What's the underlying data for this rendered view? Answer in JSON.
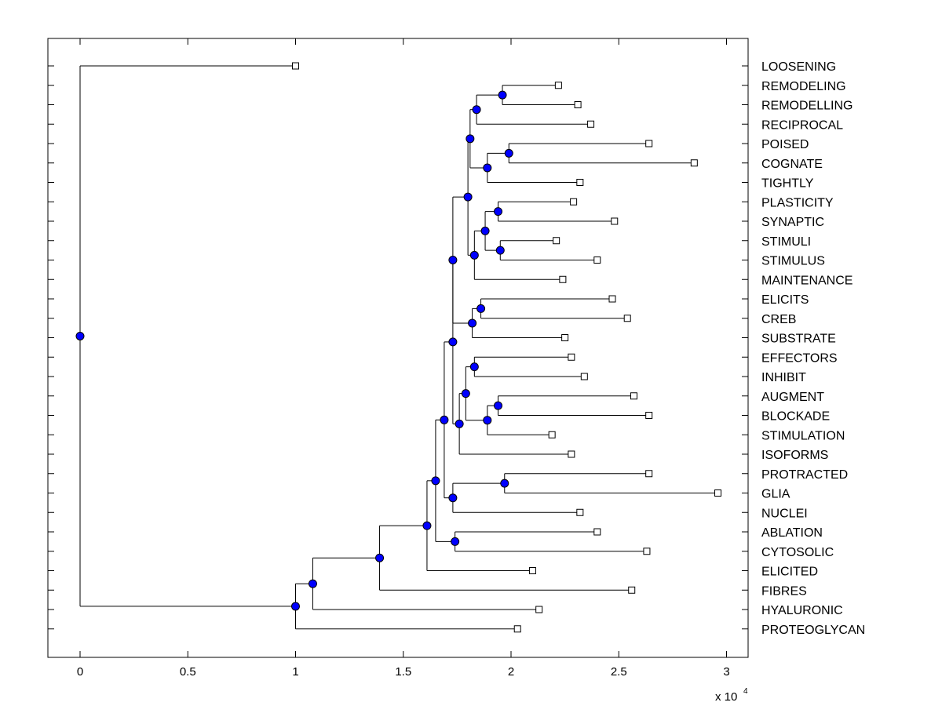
{
  "chart_data": {
    "type": "dendrogram",
    "title": "",
    "xlabel": "",
    "ylabel": "",
    "x_multiplier_label": "x 10",
    "x_multiplier_exponent": "4",
    "xlim": [
      -0.15,
      3.1
    ],
    "x_ticks": [
      {
        "value": 0,
        "label": "0"
      },
      {
        "value": 0.5,
        "label": "0.5"
      },
      {
        "value": 1,
        "label": "1"
      },
      {
        "value": 1.5,
        "label": "1.5"
      },
      {
        "value": 2,
        "label": "2"
      },
      {
        "value": 2.5,
        "label": "2.5"
      },
      {
        "value": 3,
        "label": "3"
      }
    ],
    "grid": false,
    "colors": {
      "node_fill": "#0000ff",
      "line": "#000000",
      "leaf_fill": "#ffffff"
    },
    "leaves": [
      {
        "name": "LOOSENING",
        "x": 1.0
      },
      {
        "name": "REMODELING",
        "x": 2.22
      },
      {
        "name": "REMODELLING",
        "x": 2.31
      },
      {
        "name": "RECIPROCAL",
        "x": 2.37
      },
      {
        "name": "POISED",
        "x": 2.64
      },
      {
        "name": "COGNATE",
        "x": 2.85
      },
      {
        "name": "TIGHTLY",
        "x": 2.32
      },
      {
        "name": "PLASTICITY",
        "x": 2.29
      },
      {
        "name": "SYNAPTIC",
        "x": 2.48
      },
      {
        "name": "STIMULI",
        "x": 2.21
      },
      {
        "name": "STIMULUS",
        "x": 2.4
      },
      {
        "name": "MAINTENANCE",
        "x": 2.24
      },
      {
        "name": "ELICITS",
        "x": 2.47
      },
      {
        "name": "CREB",
        "x": 2.54
      },
      {
        "name": "SUBSTRATE",
        "x": 2.25
      },
      {
        "name": "EFFECTORS",
        "x": 2.28
      },
      {
        "name": "INHIBIT",
        "x": 2.34
      },
      {
        "name": "AUGMENT",
        "x": 2.57
      },
      {
        "name": "BLOCKADE",
        "x": 2.64
      },
      {
        "name": "STIMULATION",
        "x": 2.19
      },
      {
        "name": "ISOFORMS",
        "x": 2.28
      },
      {
        "name": "PROTRACTED",
        "x": 2.64
      },
      {
        "name": "GLIA",
        "x": 2.96
      },
      {
        "name": "NUCLEI",
        "x": 2.32
      },
      {
        "name": "ABLATION",
        "x": 2.4
      },
      {
        "name": "CYTOSOLIC",
        "x": 2.63
      },
      {
        "name": "ELICITED",
        "x": 2.1
      },
      {
        "name": "FIBRES",
        "x": 2.56
      },
      {
        "name": "HYALURONIC",
        "x": 2.13
      },
      {
        "name": "PROTEOGLYCAN",
        "x": 2.03
      }
    ],
    "nodes": [
      {
        "id": "n1",
        "x": 1.96,
        "children": [
          "REMODELING",
          "REMODELLING"
        ]
      },
      {
        "id": "n2",
        "x": 1.84,
        "children": [
          "n1",
          "RECIPROCAL"
        ]
      },
      {
        "id": "n3",
        "x": 1.99,
        "children": [
          "POISED",
          "COGNATE"
        ]
      },
      {
        "id": "n4",
        "x": 1.89,
        "children": [
          "n3",
          "TIGHTLY"
        ]
      },
      {
        "id": "n5",
        "x": 1.81,
        "children": [
          "n2",
          "n4"
        ]
      },
      {
        "id": "n6",
        "x": 1.94,
        "children": [
          "PLASTICITY",
          "SYNAPTIC"
        ]
      },
      {
        "id": "n7",
        "x": 1.95,
        "children": [
          "STIMULI",
          "STIMULUS"
        ]
      },
      {
        "id": "n8",
        "x": 1.88,
        "children": [
          "n6",
          "n7"
        ]
      },
      {
        "id": "n9",
        "x": 1.83,
        "children": [
          "n8",
          "MAINTENANCE"
        ]
      },
      {
        "id": "n10",
        "x": 1.8,
        "children": [
          "n5",
          "n9"
        ]
      },
      {
        "id": "n11",
        "x": 1.86,
        "children": [
          "ELICITS",
          "CREB"
        ]
      },
      {
        "id": "n12",
        "x": 1.82,
        "children": [
          "n11",
          "SUBSTRATE"
        ]
      },
      {
        "id": "n13",
        "x": 1.73,
        "children": [
          "n10",
          "n12"
        ]
      },
      {
        "id": "n14",
        "x": 1.83,
        "children": [
          "EFFECTORS",
          "INHIBIT"
        ]
      },
      {
        "id": "n15",
        "x": 1.94,
        "children": [
          "AUGMENT",
          "BLOCKADE"
        ]
      },
      {
        "id": "n16",
        "x": 1.89,
        "children": [
          "n15",
          "STIMULATION"
        ]
      },
      {
        "id": "n17",
        "x": 1.79,
        "children": [
          "n14",
          "n16"
        ]
      },
      {
        "id": "n18",
        "x": 1.76,
        "children": [
          "n17",
          "ISOFORMS"
        ]
      },
      {
        "id": "n19",
        "x": 1.73,
        "children": [
          "n13",
          "n18"
        ]
      },
      {
        "id": "n20",
        "x": 1.97,
        "children": [
          "PROTRACTED",
          "GLIA"
        ]
      },
      {
        "id": "n21",
        "x": 1.73,
        "children": [
          "n20",
          "NUCLEI"
        ]
      },
      {
        "id": "n22",
        "x": 1.69,
        "children": [
          "n19",
          "n21"
        ]
      },
      {
        "id": "n23",
        "x": 1.74,
        "children": [
          "ABLATION",
          "CYTOSOLIC"
        ]
      },
      {
        "id": "n24",
        "x": 1.65,
        "children": [
          "n22",
          "n23"
        ]
      },
      {
        "id": "n25",
        "x": 1.61,
        "children": [
          "n24",
          "ELICITED"
        ]
      },
      {
        "id": "n26",
        "x": 1.39,
        "children": [
          "n25",
          "FIBRES"
        ]
      },
      {
        "id": "n27",
        "x": 1.08,
        "children": [
          "n26",
          "HYALURONIC"
        ]
      },
      {
        "id": "n28",
        "x": 1.0,
        "children": [
          "n27",
          "PROTEOGLYCAN"
        ]
      },
      {
        "id": "root",
        "x": 0.0,
        "children": [
          "LOOSENING",
          "n28"
        ]
      }
    ]
  }
}
